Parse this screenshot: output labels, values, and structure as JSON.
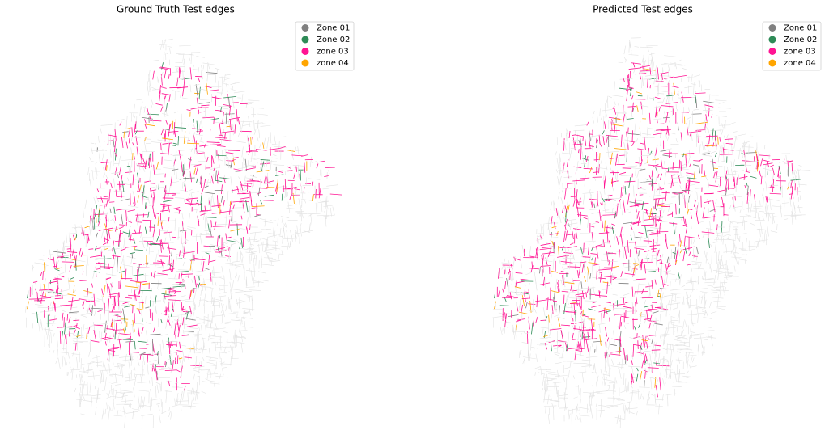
{
  "panels": [
    {
      "title": "Ground Truth Test edges",
      "legend": [
        {
          "label": "Zone 01",
          "color": "#808080"
        },
        {
          "label": "Zone 02",
          "color": "#2e8b57"
        },
        {
          "label": "zone 03",
          "color": "#ff1493"
        },
        {
          "label": "zone 04",
          "color": "#ffa500"
        }
      ]
    },
    {
      "title": "Predicted Test edges",
      "legend": [
        {
          "label": "Zone 01",
          "color": "#808080"
        },
        {
          "label": "Zone 02",
          "color": "#2e8b57"
        },
        {
          "label": "zone 03",
          "color": "#ff1493"
        },
        {
          "label": "zone 04",
          "color": "#ffa500"
        }
      ]
    }
  ]
}
